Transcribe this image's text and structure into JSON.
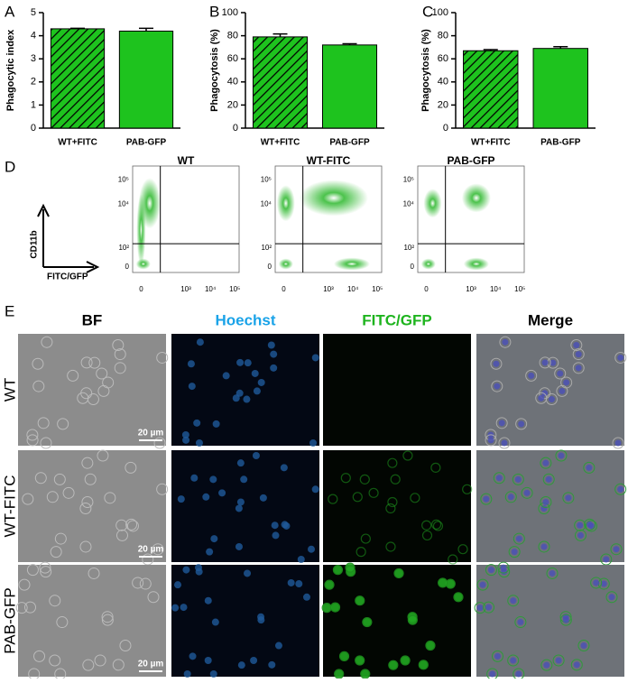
{
  "chart_data": [
    {
      "type": "bar",
      "panel": "A",
      "y_label": "Phagocytic index",
      "categories": [
        "WT+FITC",
        "PAB-GFP"
      ],
      "values": [
        4.3,
        4.2
      ],
      "errors": [
        0.02,
        0.12
      ],
      "hatched": [
        true,
        false
      ],
      "color": "#1ec31e",
      "ylim": [
        0,
        5
      ],
      "yticks": [
        0,
        1,
        2,
        3,
        4,
        5
      ]
    },
    {
      "type": "bar",
      "panel": "B",
      "y_label": "Phagocytosis (%)",
      "categories": [
        "WT+FITC",
        "PAB-GFP"
      ],
      "values": [
        79,
        72
      ],
      "errors": [
        2.5,
        1
      ],
      "hatched": [
        true,
        false
      ],
      "color": "#1ec31e",
      "ylim": [
        0,
        100
      ],
      "yticks": [
        0,
        20,
        40,
        60,
        80,
        100
      ]
    },
    {
      "type": "bar",
      "panel": "C",
      "y_label": "Phagocytosis (%)",
      "categories": [
        "WT+FITC",
        "PAB-GFP"
      ],
      "values": [
        67,
        69
      ],
      "errors": [
        1,
        1.5
      ],
      "hatched": [
        true,
        false
      ],
      "color": "#1ec31e",
      "ylim": [
        0,
        100
      ],
      "yticks": [
        0,
        20,
        40,
        60,
        80,
        100
      ]
    }
  ],
  "flow": {
    "panel": "D",
    "y_label": "CD11b",
    "x_label": "FITC/GFP",
    "plots": [
      "WT",
      "WT-FITC",
      "PAB-GFP"
    ],
    "yticks": [
      "10⁵",
      "10⁴",
      "10²",
      "0"
    ],
    "xticks": [
      "0",
      "10³",
      "10⁴",
      "10⁵"
    ]
  },
  "microscopy": {
    "panel": "E",
    "columns": [
      "BF",
      "Hoechst",
      "FITC/GFP",
      "Merge"
    ],
    "rows": [
      "WT",
      "WT-FITC",
      "PAB-GFP"
    ],
    "scale_bar": "20 µm"
  }
}
